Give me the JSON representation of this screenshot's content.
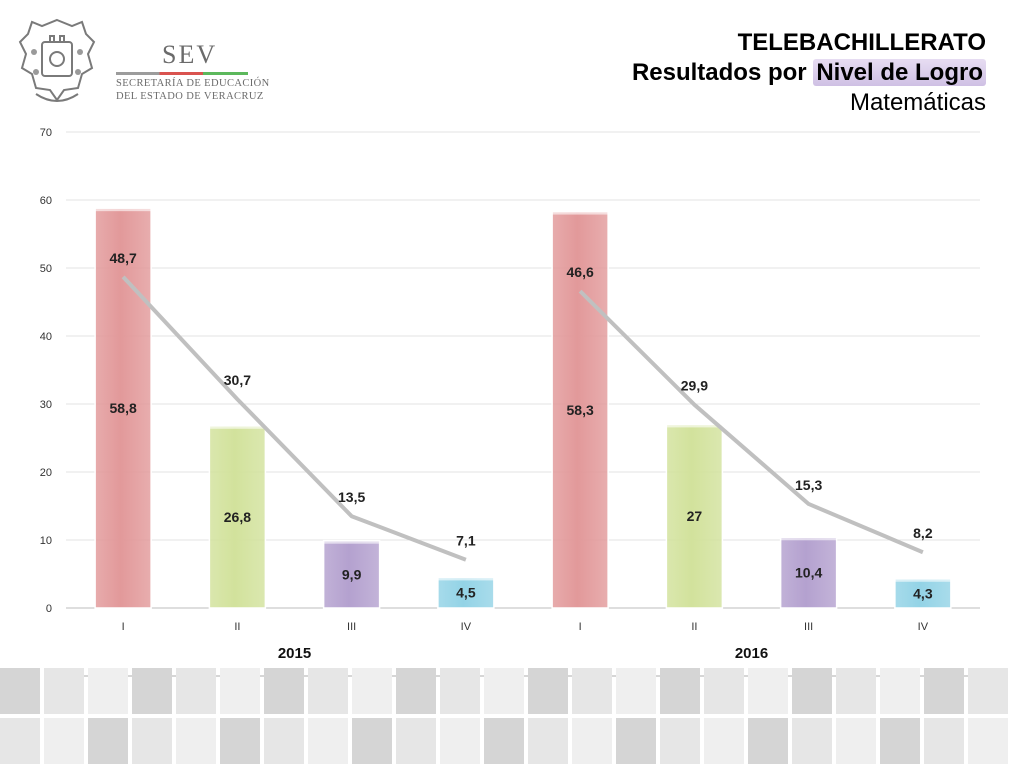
{
  "header": {
    "logo_abbrev": "SEV",
    "logo_line1": "SECRETARÍA DE EDUCACIÓN",
    "logo_line2": "DEL ESTADO DE VERACRUZ",
    "title_line1": "TELEBACHILLERATO",
    "title_line2_a": "Resultados por ",
    "title_line2_b": "Nivel de Logro",
    "title_line3": "Matemáticas"
  },
  "colors": {
    "level_I": "#e2999a",
    "level_II": "#d2e29c",
    "level_III": "#b4a1cf",
    "level_IV": "#93d3e6",
    "line": "#c0c0c0"
  },
  "chart_data": {
    "type": "bar",
    "ylim": [
      0,
      70
    ],
    "yticks": [
      "0",
      "10",
      "20",
      "30",
      "40",
      "50",
      "60",
      "70"
    ],
    "grid": true,
    "groups": [
      {
        "name": "2015",
        "categories": [
          "I",
          "II",
          "III",
          "IV"
        ],
        "bar_values": [
          58.8,
          26.8,
          9.9,
          4.5
        ],
        "bar_labels": [
          "58,8",
          "26,8",
          "9,9",
          "4,5"
        ],
        "line_values": [
          48.7,
          30.7,
          13.5,
          7.1
        ],
        "line_labels": [
          "48,7",
          "30,7",
          "13,5",
          "7,1"
        ]
      },
      {
        "name": "2016",
        "categories": [
          "I",
          "II",
          "III",
          "IV"
        ],
        "bar_values": [
          58.3,
          27,
          10.4,
          4.3
        ],
        "bar_labels": [
          "58,3",
          "27",
          "10,4",
          "4,3"
        ],
        "line_values": [
          46.6,
          29.9,
          15.3,
          8.2
        ],
        "line_labels": [
          "46,6",
          "29,9",
          "15,3",
          "8,2"
        ]
      }
    ]
  }
}
